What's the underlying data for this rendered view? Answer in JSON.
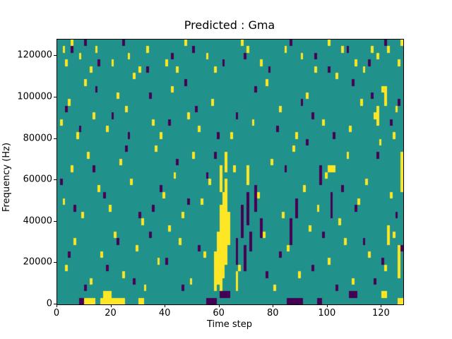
{
  "chart_data": {
    "type": "heatmap",
    "title": "Predicted : Gma",
    "xlabel": "Time step",
    "ylabel": "Frequency (Hz)",
    "x_range": [
      0,
      128
    ],
    "y_range": [
      0,
      128000
    ],
    "x_bins": 128,
    "y_bins": 40,
    "x_ticks": [
      0,
      20,
      40,
      60,
      80,
      100,
      120
    ],
    "y_ticks": [
      0,
      20000,
      40000,
      60000,
      80000,
      100000,
      120000
    ],
    "grid": false,
    "legend": "none",
    "colors": {
      "background": "#21918c",
      "high": "#fde725",
      "low": "#440154",
      "figure_bg": "#ffffff",
      "axis": "#000000"
    },
    "cells": {
      "yellow_singles": [
        [
          2,
          38
        ],
        [
          3,
          36
        ],
        [
          5,
          39
        ],
        [
          8,
          37
        ],
        [
          12,
          35
        ],
        [
          14,
          38
        ],
        [
          20,
          36
        ],
        [
          26,
          37
        ],
        [
          30,
          35
        ],
        [
          33,
          38
        ],
        [
          40,
          36
        ],
        [
          44,
          35
        ],
        [
          47,
          39
        ],
        [
          55,
          37
        ],
        [
          58,
          35
        ],
        [
          68,
          39
        ],
        [
          70,
          38
        ],
        [
          75,
          36
        ],
        [
          84,
          38
        ],
        [
          90,
          37
        ],
        [
          95,
          35
        ],
        [
          100,
          39
        ],
        [
          105,
          38
        ],
        [
          110,
          36
        ],
        [
          113,
          35
        ],
        [
          116,
          38
        ],
        [
          118,
          37
        ],
        [
          122,
          38
        ],
        [
          126,
          36
        ],
        [
          127,
          39
        ],
        [
          1,
          27
        ],
        [
          4,
          30
        ],
        [
          7,
          25
        ],
        [
          10,
          33
        ],
        [
          13,
          28
        ],
        [
          18,
          26
        ],
        [
          22,
          31
        ],
        [
          25,
          29
        ],
        [
          28,
          34
        ],
        [
          35,
          27
        ],
        [
          38,
          25
        ],
        [
          42,
          32
        ],
        [
          48,
          28
        ],
        [
          52,
          26
        ],
        [
          57,
          30
        ],
        [
          64,
          25
        ],
        [
          72,
          27
        ],
        [
          77,
          33
        ],
        [
          82,
          29
        ],
        [
          88,
          25
        ],
        [
          92,
          31
        ],
        [
          98,
          27
        ],
        [
          103,
          34
        ],
        [
          108,
          26
        ],
        [
          112,
          30
        ],
        [
          117,
          28
        ],
        [
          120,
          32
        ],
        [
          124,
          25
        ],
        [
          125,
          29
        ],
        [
          2,
          15
        ],
        [
          5,
          20
        ],
        [
          9,
          13
        ],
        [
          11,
          22
        ],
        [
          15,
          17
        ],
        [
          19,
          14
        ],
        [
          23,
          21
        ],
        [
          27,
          18
        ],
        [
          31,
          12
        ],
        [
          36,
          23
        ],
        [
          39,
          16
        ],
        [
          43,
          19
        ],
        [
          46,
          13
        ],
        [
          50,
          22
        ],
        [
          53,
          15
        ],
        [
          56,
          18
        ],
        [
          65,
          20
        ],
        [
          74,
          16
        ],
        [
          79,
          21
        ],
        [
          83,
          13
        ],
        [
          87,
          23
        ],
        [
          91,
          17
        ],
        [
          96,
          14
        ],
        [
          99,
          19
        ],
        [
          104,
          12
        ],
        [
          107,
          22
        ],
        [
          111,
          15
        ],
        [
          114,
          18
        ],
        [
          119,
          24
        ],
        [
          123,
          16
        ],
        [
          3,
          5
        ],
        [
          6,
          9
        ],
        [
          12,
          3
        ],
        [
          16,
          7
        ],
        [
          21,
          10
        ],
        [
          24,
          4
        ],
        [
          29,
          8
        ],
        [
          32,
          2
        ],
        [
          37,
          6
        ],
        [
          41,
          11
        ],
        [
          45,
          9
        ],
        [
          49,
          3
        ],
        [
          54,
          7
        ],
        [
          67,
          5
        ],
        [
          76,
          10
        ],
        [
          80,
          2
        ],
        [
          85,
          8
        ],
        [
          89,
          4
        ],
        [
          93,
          11
        ],
        [
          100,
          6
        ],
        [
          106,
          9
        ],
        [
          109,
          3
        ],
        [
          115,
          7
        ],
        [
          121,
          5
        ],
        [
          124,
          10
        ]
      ],
      "yellow_vruns": [
        [
          58,
          2,
          7
        ],
        [
          59,
          3,
          10
        ],
        [
          60,
          1,
          14
        ],
        [
          61,
          4,
          16
        ],
        [
          62,
          6,
          18
        ],
        [
          63,
          9,
          13
        ],
        [
          60,
          17,
          20
        ],
        [
          62,
          20,
          22
        ],
        [
          66,
          2,
          4
        ],
        [
          70,
          18,
          20
        ],
        [
          118,
          27,
          29
        ],
        [
          121,
          30,
          32
        ],
        [
          122,
          9,
          11
        ],
        [
          126,
          4,
          8
        ],
        [
          127,
          17,
          22
        ]
      ],
      "yellow_hruns": [
        [
          0,
          10,
          13
        ],
        [
          0,
          16,
          24
        ],
        [
          1,
          17,
          19
        ],
        [
          0,
          30,
          31
        ],
        [
          20,
          100,
          102
        ],
        [
          1,
          120,
          121
        ],
        [
          0,
          126,
          127
        ]
      ],
      "purple_singles": [
        [
          5,
          38
        ],
        [
          10,
          39
        ],
        [
          15,
          36
        ],
        [
          24,
          39
        ],
        [
          33,
          35
        ],
        [
          42,
          37
        ],
        [
          50,
          38
        ],
        [
          61,
          36
        ],
        [
          69,
          37
        ],
        [
          78,
          35
        ],
        [
          86,
          39
        ],
        [
          95,
          37
        ],
        [
          100,
          35
        ],
        [
          107,
          38
        ],
        [
          115,
          36
        ],
        [
          121,
          39
        ],
        [
          3,
          29
        ],
        [
          8,
          26
        ],
        [
          14,
          32
        ],
        [
          20,
          28
        ],
        [
          26,
          25
        ],
        [
          34,
          31
        ],
        [
          41,
          27
        ],
        [
          47,
          33
        ],
        [
          51,
          29
        ],
        [
          59,
          25
        ],
        [
          66,
          28
        ],
        [
          73,
          32
        ],
        [
          81,
          26
        ],
        [
          90,
          30
        ],
        [
          94,
          28
        ],
        [
          102,
          25
        ],
        [
          109,
          33
        ],
        [
          116,
          31
        ],
        [
          123,
          27
        ],
        [
          126,
          30
        ],
        [
          1,
          18
        ],
        [
          6,
          14
        ],
        [
          13,
          20
        ],
        [
          17,
          16
        ],
        [
          25,
          23
        ],
        [
          30,
          13
        ],
        [
          35,
          14
        ],
        [
          38,
          17
        ],
        [
          44,
          21
        ],
        [
          48,
          15
        ],
        [
          55,
          19
        ],
        [
          58,
          22
        ],
        [
          84,
          20
        ],
        [
          92,
          24
        ],
        [
          105,
          17
        ],
        [
          110,
          14
        ],
        [
          118,
          22
        ],
        [
          125,
          13
        ],
        [
          4,
          7
        ],
        [
          10,
          2
        ],
        [
          18,
          5
        ],
        [
          22,
          9
        ],
        [
          28,
          3
        ],
        [
          34,
          10
        ],
        [
          40,
          6
        ],
        [
          46,
          2
        ],
        [
          52,
          8
        ],
        [
          77,
          4
        ],
        [
          82,
          7
        ],
        [
          94,
          5
        ],
        [
          98,
          10
        ],
        [
          103,
          2
        ],
        [
          113,
          9
        ],
        [
          117,
          3
        ],
        [
          120,
          6
        ],
        [
          127,
          8
        ]
      ],
      "purple_vruns": [
        [
          66,
          6,
          9
        ],
        [
          68,
          10,
          14
        ],
        [
          69,
          5,
          8
        ],
        [
          70,
          12,
          16
        ],
        [
          71,
          8,
          10
        ],
        [
          73,
          14,
          17
        ],
        [
          75,
          10,
          12
        ],
        [
          86,
          9,
          12
        ],
        [
          88,
          13,
          15
        ],
        [
          97,
          18,
          20
        ],
        [
          101,
          13,
          16
        ]
      ],
      "purple_hruns": [
        [
          0,
          8,
          9
        ],
        [
          0,
          55,
          58
        ],
        [
          1,
          60,
          63
        ],
        [
          0,
          85,
          90
        ],
        [
          0,
          96,
          97
        ],
        [
          1,
          108,
          110
        ]
      ]
    }
  }
}
